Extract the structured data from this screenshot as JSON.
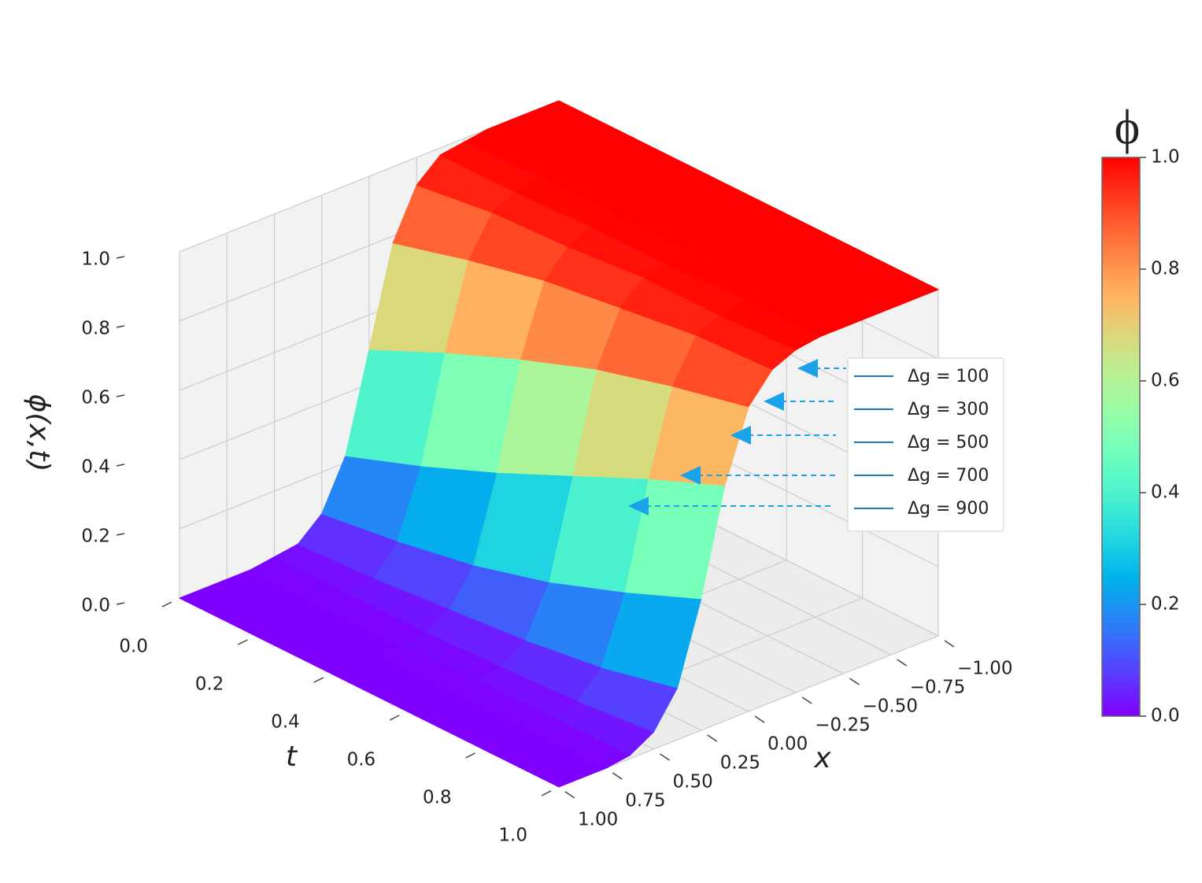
{
  "chart_data": {
    "type": "surface",
    "xlabel": "x",
    "ylabel": "t",
    "zlabel": "ϕ(x,t)",
    "x": [
      -1,
      -0.875,
      -0.75,
      -0.625,
      -0.5,
      -0.375,
      -0.25,
      -0.125,
      0,
      0.125,
      0.25,
      0.375,
      0.5,
      0.625,
      0.75,
      0.875,
      1
    ],
    "t": [
      0,
      0.2,
      0.4,
      0.6,
      0.8,
      1
    ],
    "z": [
      [
        1,
        1,
        1,
        1,
        0.99,
        0.98,
        0.92,
        0.78,
        0.5,
        0.22,
        0.08,
        0.02,
        0.01,
        0,
        0,
        0,
        0
      ],
      [
        1,
        1,
        1,
        1,
        1,
        0.98,
        0.95,
        0.84,
        0.6,
        0.3,
        0.11,
        0.03,
        0.01,
        0,
        0,
        0,
        0
      ],
      [
        1,
        1,
        1,
        1,
        1,
        0.99,
        0.96,
        0.89,
        0.69,
        0.39,
        0.15,
        0.05,
        0.01,
        0,
        0,
        0,
        0
      ],
      [
        1,
        1,
        1,
        1,
        1,
        0.99,
        0.98,
        0.92,
        0.77,
        0.49,
        0.21,
        0.07,
        0.02,
        0.01,
        0,
        0,
        0
      ],
      [
        1,
        1,
        1,
        1,
        1,
        1,
        0.98,
        0.95,
        0.83,
        0.59,
        0.29,
        0.1,
        0.03,
        0.01,
        0,
        0,
        0
      ],
      [
        1,
        1,
        1,
        1,
        1,
        1,
        0.99,
        0.96,
        0.88,
        0.68,
        0.38,
        0.15,
        0.05,
        0.01,
        0,
        0,
        0
      ]
    ],
    "xlim": [
      -1,
      1
    ],
    "tlim": [
      0,
      1
    ],
    "zlim": [
      0,
      1
    ],
    "xticks": [
      {
        "value": -1,
        "label": "−1.00"
      },
      {
        "value": -0.75,
        "label": "−0.75"
      },
      {
        "value": -0.5,
        "label": "−0.50"
      },
      {
        "value": -0.25,
        "label": "−0.25"
      },
      {
        "value": 0,
        "label": "0.00"
      },
      0.25,
      {
        "value": 0.5,
        "label": "0.50"
      },
      0.75,
      {
        "value": 1,
        "label": "1.00"
      }
    ],
    "tticks": [
      {
        "value": 0,
        "label": "0.0"
      },
      0.2,
      0.4,
      0.6,
      0.8,
      {
        "value": 1,
        "label": "1.0"
      }
    ],
    "zticks": [
      {
        "value": 0,
        "label": "0.0"
      },
      0.2,
      0.4,
      0.6,
      0.8,
      {
        "value": 1,
        "label": "1.0"
      }
    ],
    "colormap": "rainbow",
    "grid": true,
    "colorbar": {
      "title": "ϕ",
      "lim": [
        0,
        1
      ],
      "ticks": [
        {
          "value": 0,
          "label": "0.0"
        },
        0.2,
        0.4,
        0.6,
        0.8,
        {
          "value": 1,
          "label": "1.0"
        }
      ]
    },
    "series": [
      {
        "name": "Δg = 100",
        "color": "#1f77b4"
      },
      {
        "name": "Δg = 300",
        "color": "#1f77b4"
      },
      {
        "name": "Δg = 500",
        "color": "#1f77b4"
      },
      {
        "name": "Δg = 700",
        "color": "#1f77b4"
      },
      {
        "name": "Δg = 900",
        "color": "#1f77b4"
      }
    ]
  }
}
